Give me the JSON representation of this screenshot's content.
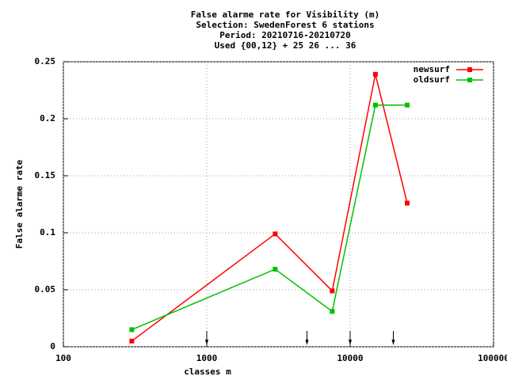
{
  "chart_data": {
    "type": "line",
    "title": [
      "False alarme rate  for Visibility (m)",
      "Selection: SwedenForest      6 stations",
      "Period: 20210716-20210720",
      "Used {00,12} + 25 26 ... 36"
    ],
    "xlabel": "classes m",
    "ylabel": "False alarme rate",
    "x": [
      300,
      3000,
      7500,
      15000,
      25000
    ],
    "series": [
      {
        "name": "newsurf",
        "color": "#ff0000",
        "values": [
          0.005,
          0.099,
          0.049,
          0.239,
          0.126
        ]
      },
      {
        "name": "oldsurf",
        "color": "#00c000",
        "values": [
          0.015,
          0.068,
          0.031,
          0.212,
          0.212
        ]
      }
    ],
    "xlim": [
      100,
      100000
    ],
    "xticks": [
      100,
      1000,
      10000,
      100000
    ],
    "xlog": true,
    "ylim": [
      0,
      0.25
    ],
    "yticks": [
      0,
      0.05,
      0.1,
      0.15,
      0.2,
      0.25
    ],
    "grid": true,
    "legend": "top-right",
    "arrows": [
      1000,
      5000,
      10000,
      20000
    ]
  }
}
